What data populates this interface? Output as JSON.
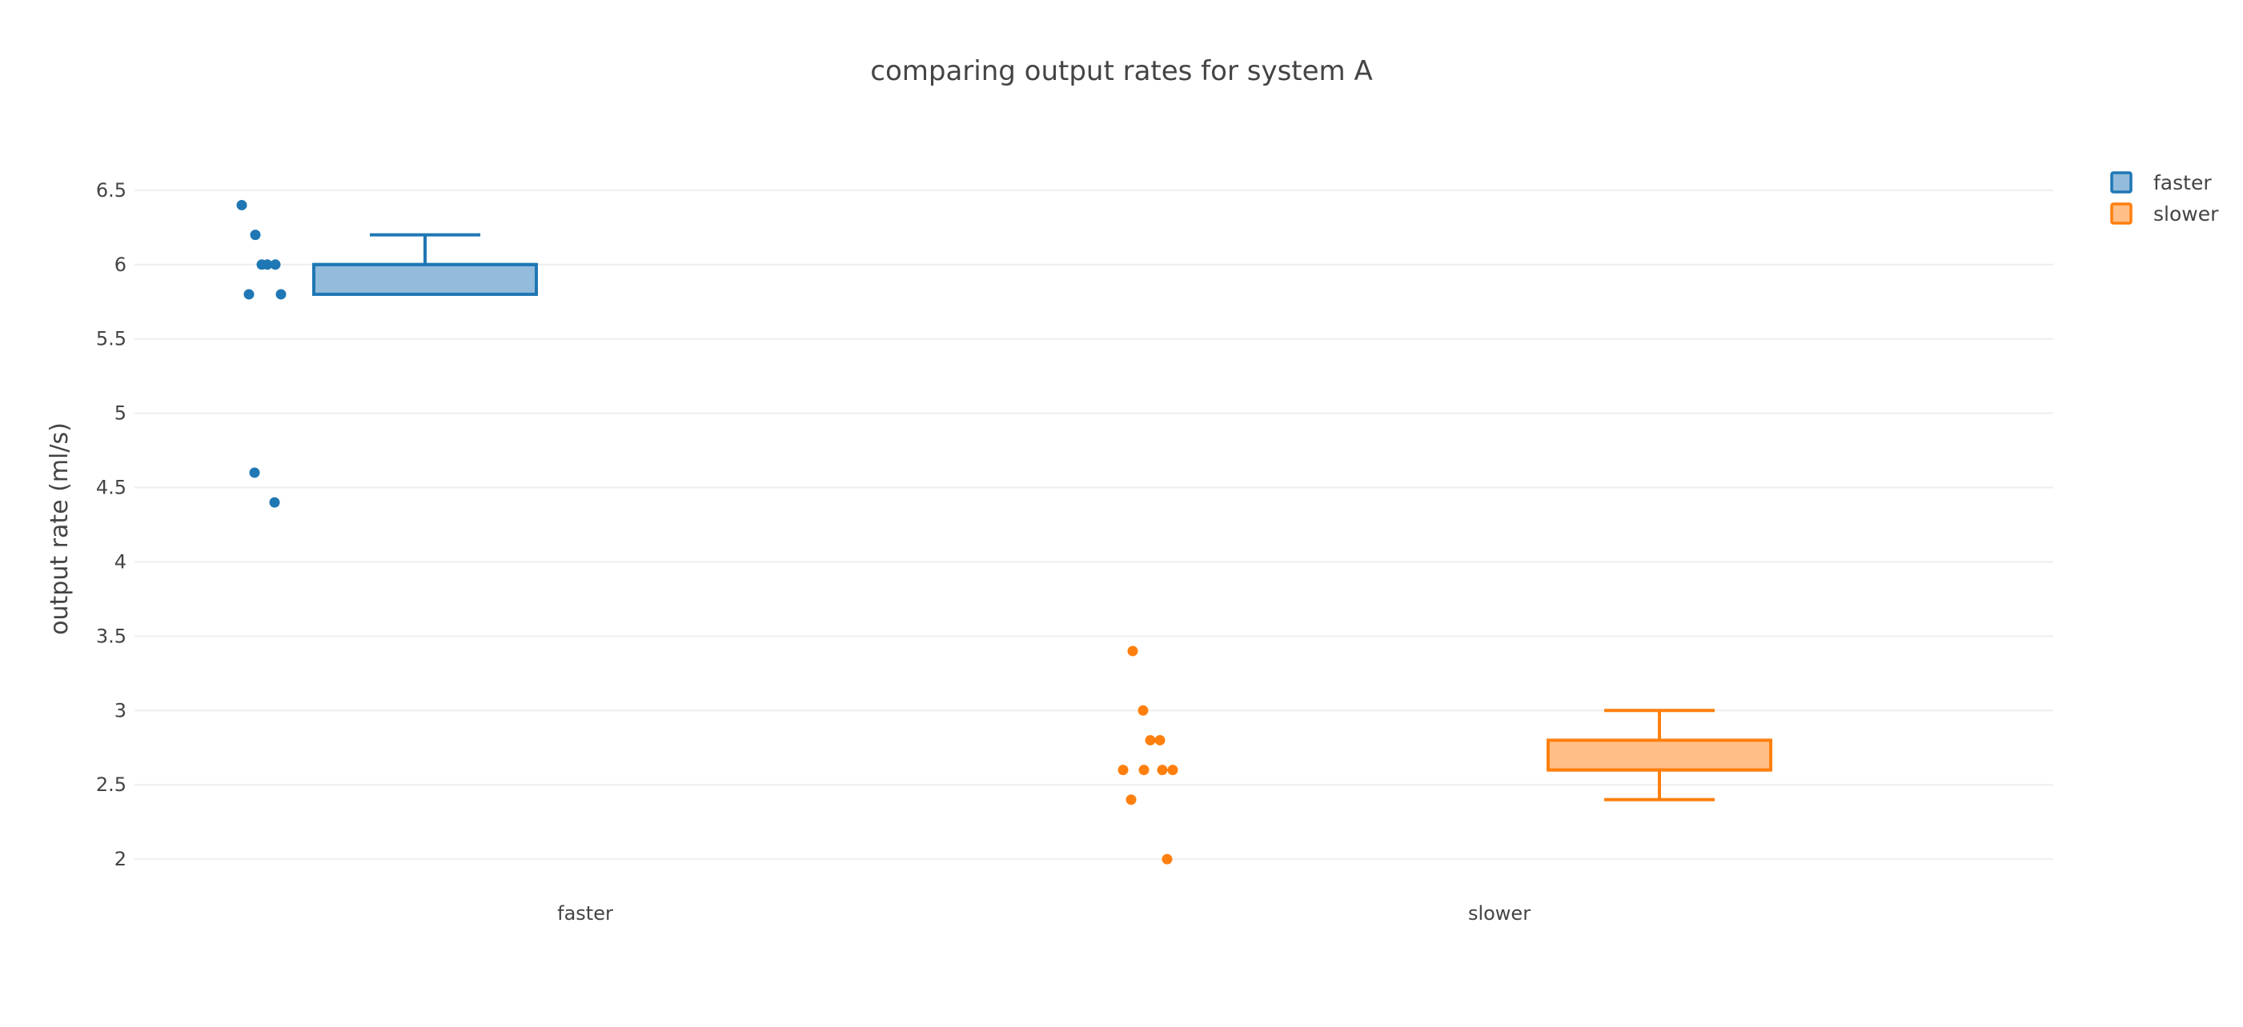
{
  "chart_data": {
    "type": "box",
    "title": "comparing output rates for system A",
    "ylabel": "output rate (ml/s)",
    "xlabel": "",
    "categories": [
      "faster",
      "slower"
    ],
    "ylim": [
      1.85,
      6.65
    ],
    "yticks": [
      2,
      2.5,
      3,
      3.5,
      4,
      4.5,
      5,
      5.5,
      6,
      6.5
    ],
    "grid": true,
    "legend_position": "top-right",
    "series": [
      {
        "name": "faster",
        "category": "faster",
        "color": "#1f77b4",
        "fill": "#93bbdb",
        "points": [
          6.4,
          6.2,
          6.0,
          6.0,
          6.0,
          5.8,
          5.8,
          4.6,
          4.4
        ],
        "box": {
          "lower_whisker": 5.8,
          "q1": 5.8,
          "median": 6.0,
          "q3": 6.0,
          "upper_whisker": 6.2
        }
      },
      {
        "name": "slower",
        "category": "slower",
        "color": "#ff7f0e",
        "fill": "#ffbf87",
        "points": [
          3.4,
          3.0,
          2.8,
          2.8,
          2.6,
          2.6,
          2.6,
          2.6,
          2.4,
          2.0
        ],
        "box": {
          "lower_whisker": 2.4,
          "q1": 2.6,
          "median": 2.6,
          "q3": 2.8,
          "upper_whisker": 3.0
        }
      }
    ]
  }
}
